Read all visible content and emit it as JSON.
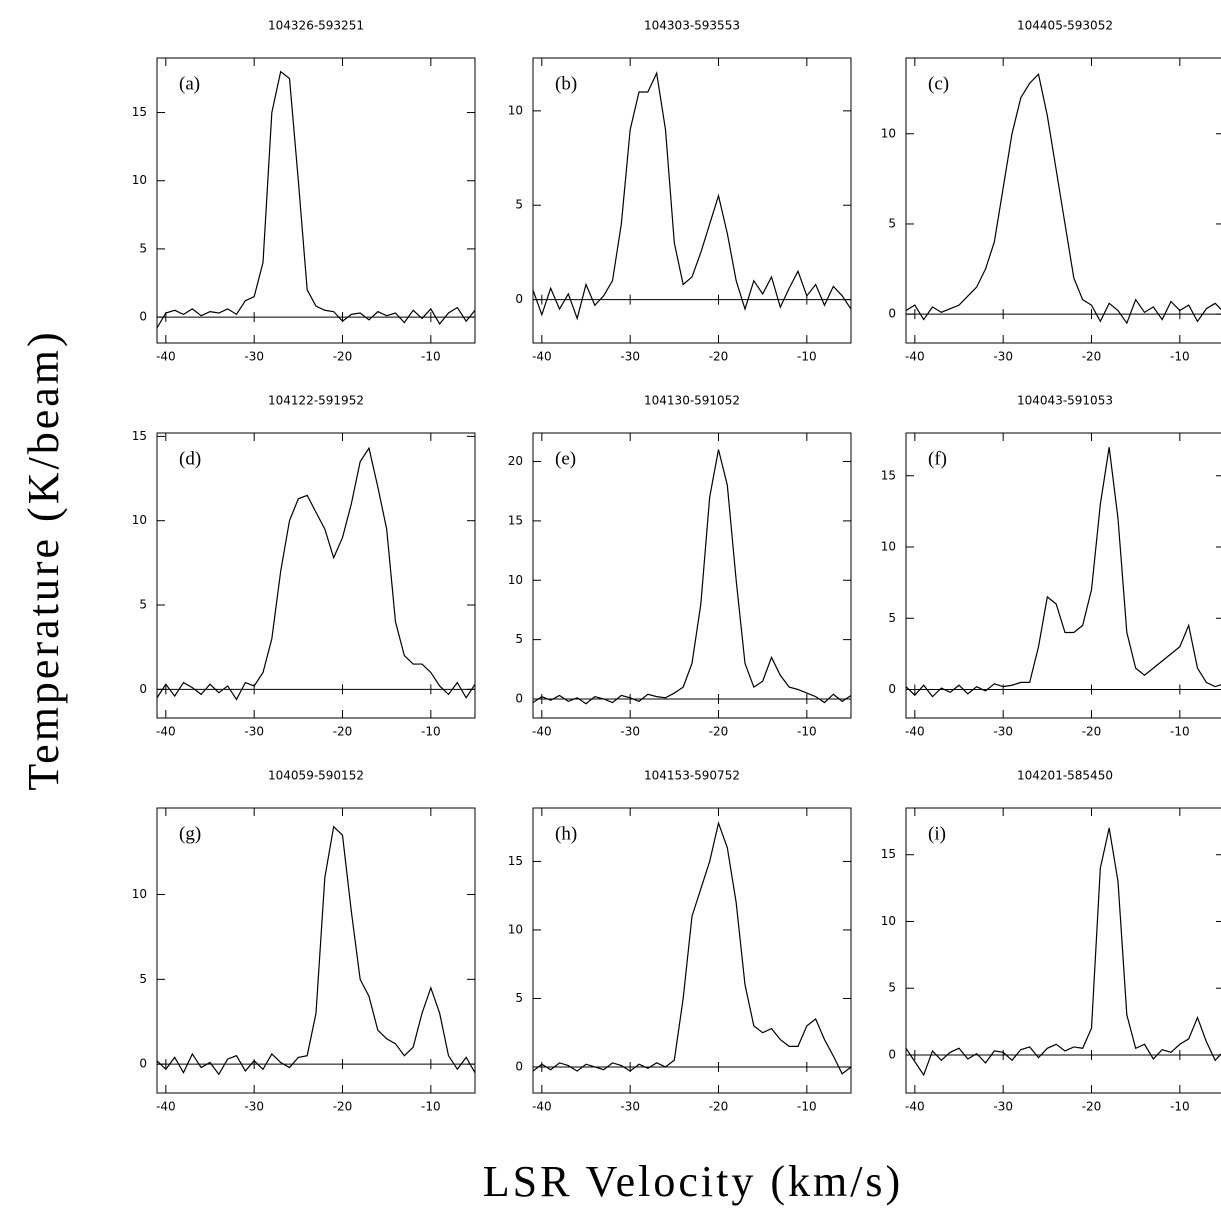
{
  "xlabel": "LSR Velocity (km/s)",
  "ylabel": "Temperature (K/beam)",
  "chart_data": [
    {
      "type": "line",
      "title": "104326-593251",
      "annotation": "(a)",
      "color": "#000000",
      "x": [
        -41,
        -40,
        -39,
        -38,
        -37,
        -36,
        -35,
        -34,
        -33,
        -32,
        -31,
        -30,
        -29,
        -28,
        -27,
        -26,
        -25,
        -24,
        -23,
        -22,
        -21,
        -20,
        -19,
        -18,
        -17,
        -16,
        -15,
        -14,
        -13,
        -12,
        -11,
        -10,
        -9,
        -8,
        -7,
        -6,
        -5
      ],
      "values": [
        -0.8,
        0.3,
        0.5,
        0.2,
        0.6,
        0.1,
        0.4,
        0.3,
        0.6,
        0.2,
        1.2,
        1.5,
        4,
        15,
        18,
        17.5,
        10,
        2,
        0.8,
        0.5,
        0.4,
        -0.3,
        0.2,
        0.3,
        -0.2,
        0.4,
        0.1,
        0.3,
        -0.4,
        0.5,
        -0.1,
        0.6,
        -0.5,
        0.3,
        0.7,
        -0.3,
        0.5
      ],
      "xlim": [
        -41,
        -5
      ],
      "ylim": [
        -1.9,
        19
      ],
      "xticks": [
        -40,
        -30,
        -20,
        -10
      ],
      "yticks": [
        0,
        5,
        10,
        15
      ]
    },
    {
      "type": "line",
      "title": "104303-593553",
      "annotation": "(b)",
      "color": "#000000",
      "x": [
        -41,
        -40,
        -39,
        -38,
        -37,
        -36,
        -35,
        -34,
        -33,
        -32,
        -31,
        -30,
        -29,
        -28,
        -27,
        -26,
        -25,
        -24,
        -23,
        -22,
        -21,
        -20,
        -19,
        -18,
        -17,
        -16,
        -15,
        -14,
        -13,
        -12,
        -11,
        -10,
        -9,
        -8,
        -7,
        -6,
        -5
      ],
      "values": [
        0.5,
        -0.8,
        0.6,
        -0.5,
        0.3,
        -1,
        0.8,
        -0.3,
        0.2,
        1,
        4,
        9,
        11,
        11,
        12,
        9,
        3,
        0.8,
        1.2,
        2.5,
        4,
        5.5,
        3.5,
        1,
        -0.5,
        1,
        0.3,
        1.2,
        -0.4,
        0.6,
        1.5,
        0.2,
        0.8,
        -0.3,
        0.7,
        0.2,
        -0.5
      ],
      "xlim": [
        -41,
        -5
      ],
      "ylim": [
        -2.3,
        12.8
      ],
      "xticks": [
        -40,
        -30,
        -20,
        -10
      ],
      "yticks": [
        0,
        5,
        10
      ]
    },
    {
      "type": "line",
      "title": "104405-593052",
      "annotation": "(c)",
      "color": "#000000",
      "x": [
        -41,
        -40,
        -39,
        -38,
        -37,
        -36,
        -35,
        -34,
        -33,
        -32,
        -31,
        -30,
        -29,
        -28,
        -27,
        -26,
        -25,
        -24,
        -23,
        -22,
        -21,
        -20,
        -19,
        -18,
        -17,
        -16,
        -15,
        -14,
        -13,
        -12,
        -11,
        -10,
        -9,
        -8,
        -7,
        -6,
        -5
      ],
      "values": [
        0.2,
        0.5,
        -0.3,
        0.4,
        0.1,
        0.3,
        0.5,
        1,
        1.5,
        2.5,
        4,
        7,
        10,
        12,
        12.8,
        13.3,
        11,
        8,
        5,
        2,
        0.8,
        0.5,
        -0.4,
        0.6,
        0.2,
        -0.5,
        0.8,
        0.1,
        0.4,
        -0.3,
        0.7,
        0.2,
        0.5,
        -0.4,
        0.3,
        0.6,
        0.1
      ],
      "xlim": [
        -41,
        -5
      ],
      "ylim": [
        -1.6,
        14.2
      ],
      "xticks": [
        -40,
        -30,
        -20,
        -10
      ],
      "yticks": [
        0,
        5,
        10
      ]
    },
    {
      "type": "line",
      "title": "104122-591952",
      "annotation": "(d)",
      "color": "#000000",
      "x": [
        -41,
        -40,
        -39,
        -38,
        -37,
        -36,
        -35,
        -34,
        -33,
        -32,
        -31,
        -30,
        -29,
        -28,
        -27,
        -26,
        -25,
        -24,
        -23,
        -22,
        -21,
        -20,
        -19,
        -18,
        -17,
        -16,
        -15,
        -14,
        -13,
        -12,
        -11,
        -10,
        -9,
        -8,
        -7,
        -6,
        -5
      ],
      "values": [
        -0.5,
        0.3,
        -0.4,
        0.4,
        0.1,
        -0.3,
        0.3,
        -0.2,
        0.2,
        -0.6,
        0.4,
        0.2,
        1,
        3,
        7,
        10,
        11.3,
        11.5,
        10.5,
        9.5,
        7.8,
        9,
        11,
        13.5,
        14.3,
        12,
        9.5,
        4,
        2,
        1.5,
        1.5,
        1,
        0.2,
        -0.3,
        0.4,
        -0.5,
        0.3
      ],
      "xlim": [
        -41,
        -5
      ],
      "ylim": [
        -1.7,
        15.2
      ],
      "xticks": [
        -40,
        -30,
        -20,
        -10
      ],
      "yticks": [
        0,
        5,
        10,
        15
      ]
    },
    {
      "type": "line",
      "title": "104130-591052",
      "annotation": "(e)",
      "color": "#000000",
      "x": [
        -41,
        -40,
        -39,
        -38,
        -37,
        -36,
        -35,
        -34,
        -33,
        -32,
        -31,
        -30,
        -29,
        -28,
        -27,
        -26,
        -25,
        -24,
        -23,
        -22,
        -21,
        -20,
        -19,
        -18,
        -17,
        -16,
        -15,
        -14,
        -13,
        -12,
        -11,
        -10,
        -9,
        -8,
        -7,
        -6,
        -5
      ],
      "values": [
        -0.3,
        0.2,
        -0.1,
        0.3,
        -0.2,
        0.1,
        -0.4,
        0.2,
        0,
        -0.3,
        0.3,
        0.1,
        -0.2,
        0.4,
        0.2,
        0.1,
        0.5,
        1,
        3,
        8,
        17,
        21,
        18,
        10,
        3,
        1,
        1.5,
        3.5,
        2,
        1,
        0.8,
        0.5,
        0.2,
        -0.3,
        0.4,
        -0.2,
        0.3
      ],
      "xlim": [
        -41,
        -5
      ],
      "ylim": [
        -1.6,
        22.4
      ],
      "xticks": [
        -40,
        -30,
        -20,
        -10
      ],
      "yticks": [
        0,
        5,
        10,
        15,
        20
      ]
    },
    {
      "type": "line",
      "title": "104043-591053",
      "annotation": "(f)",
      "color": "#000000",
      "x": [
        -41,
        -40,
        -39,
        -38,
        -37,
        -36,
        -35,
        -34,
        -33,
        -32,
        -31,
        -30,
        -29,
        -28,
        -27,
        -26,
        -25,
        -24,
        -23,
        -22,
        -21,
        -20,
        -19,
        -18,
        -17,
        -16,
        -15,
        -14,
        -13,
        -12,
        -11,
        -10,
        -9,
        -8,
        -7,
        -6,
        -5
      ],
      "values": [
        0.2,
        -0.4,
        0.3,
        -0.5,
        0.1,
        -0.2,
        0.3,
        -0.3,
        0.2,
        -0.1,
        0.4,
        0.2,
        0.3,
        0.5,
        0.5,
        3,
        6.5,
        6,
        4,
        4,
        4.5,
        7,
        13,
        17,
        12,
        4,
        1.5,
        1,
        1.5,
        2,
        2.5,
        3,
        4.5,
        1.5,
        0.5,
        0.2,
        0.4
      ],
      "xlim": [
        -41,
        -5
      ],
      "ylim": [
        -2,
        18
      ],
      "xticks": [
        -40,
        -30,
        -20,
        -10
      ],
      "yticks": [
        0,
        5,
        10,
        15
      ]
    },
    {
      "type": "line",
      "title": "104059-590152",
      "annotation": "(g)",
      "color": "#000000",
      "x": [
        -41,
        -40,
        -39,
        -38,
        -37,
        -36,
        -35,
        -34,
        -33,
        -32,
        -31,
        -30,
        -29,
        -28,
        -27,
        -26,
        -25,
        -24,
        -23,
        -22,
        -21,
        -20,
        -19,
        -18,
        -17,
        -16,
        -15,
        -14,
        -13,
        -12,
        -11,
        -10,
        -9,
        -8,
        -7,
        -6,
        -5
      ],
      "values": [
        0.2,
        -0.3,
        0.4,
        -0.5,
        0.6,
        -0.2,
        0.1,
        -0.6,
        0.3,
        0.5,
        -0.4,
        0.2,
        -0.3,
        0.6,
        0.1,
        -0.2,
        0.4,
        0.5,
        3,
        11,
        14,
        13.5,
        9,
        5,
        4,
        2,
        1.5,
        1.2,
        0.5,
        1,
        3,
        4.5,
        3,
        0.5,
        -0.3,
        0.4,
        -0.5
      ],
      "xlim": [
        -41,
        -5
      ],
      "ylim": [
        -1.7,
        15.1
      ],
      "xticks": [
        -40,
        -30,
        -20,
        -10
      ],
      "yticks": [
        0,
        5,
        10
      ]
    },
    {
      "type": "line",
      "title": "104153-590752",
      "annotation": "(h)",
      "color": "#000000",
      "x": [
        -41,
        -40,
        -39,
        -38,
        -37,
        -36,
        -35,
        -34,
        -33,
        -32,
        -31,
        -30,
        -29,
        -28,
        -27,
        -26,
        -25,
        -24,
        -23,
        -22,
        -21,
        -20,
        -19,
        -18,
        -17,
        -16,
        -15,
        -14,
        -13,
        -12,
        -11,
        -10,
        -9,
        -8,
        -7,
        -6,
        -5
      ],
      "values": [
        -0.3,
        0.2,
        -0.2,
        0.3,
        0.1,
        -0.3,
        0.2,
        0,
        -0.2,
        0.3,
        0.1,
        -0.3,
        0.2,
        -0.1,
        0.3,
        0,
        0.5,
        5,
        11,
        13,
        15,
        17.8,
        16,
        12,
        6,
        3,
        2.5,
        2.8,
        2,
        1.5,
        1.5,
        3,
        3.5,
        2,
        0.8,
        -0.5,
        0
      ],
      "xlim": [
        -41,
        -5
      ],
      "ylim": [
        -1.9,
        18.9
      ],
      "xticks": [
        -40,
        -30,
        -20,
        -10
      ],
      "yticks": [
        0,
        5,
        10,
        15
      ]
    },
    {
      "type": "line",
      "title": "104201-585450",
      "annotation": "(i)",
      "color": "#000000",
      "x": [
        -41,
        -40,
        -39,
        -38,
        -37,
        -36,
        -35,
        -34,
        -33,
        -32,
        -31,
        -30,
        -29,
        -28,
        -27,
        -26,
        -25,
        -24,
        -23,
        -22,
        -21,
        -20,
        -19,
        -18,
        -17,
        -16,
        -15,
        -14,
        -13,
        -12,
        -11,
        -10,
        -9,
        -8,
        -7,
        -6,
        -5
      ],
      "values": [
        0.5,
        -0.5,
        -1.5,
        0.3,
        -0.4,
        0.2,
        0.5,
        -0.3,
        0.1,
        -0.6,
        0.3,
        0.2,
        -0.4,
        0.4,
        0.6,
        -0.2,
        0.5,
        0.8,
        0.3,
        0.6,
        0.5,
        2,
        14,
        17,
        13,
        3,
        0.5,
        0.8,
        -0.3,
        0.4,
        0.2,
        0.8,
        1.2,
        2.8,
        1,
        -0.4,
        0.3
      ],
      "xlim": [
        -41,
        -5
      ],
      "ylim": [
        -2.85,
        18.5
      ],
      "xticks": [
        -40,
        -30,
        -20,
        -10
      ],
      "yticks": [
        0,
        5,
        10,
        15
      ]
    }
  ]
}
